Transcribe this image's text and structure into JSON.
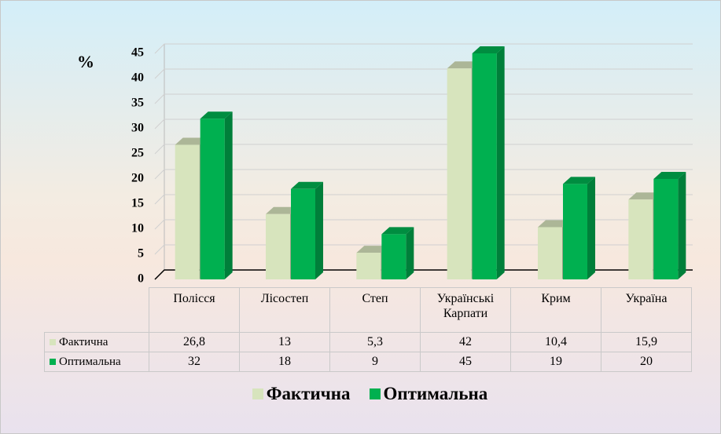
{
  "chart_data": {
    "type": "bar3d",
    "y_label": "%",
    "categories": [
      "Полісся",
      "Лісостеп",
      "Степ",
      "Українські Карпати",
      "Крим",
      "Україна"
    ],
    "series": [
      {
        "name": "Фактична",
        "color": "#d7e4bd",
        "values": [
          26.8,
          13,
          5.3,
          42,
          10.4,
          15.9
        ],
        "value_labels": [
          "26,8",
          "13",
          "5,3",
          "42",
          "10,4",
          "15,9"
        ]
      },
      {
        "name": "Оптимальна",
        "color": "#00b050",
        "values": [
          32,
          18,
          9,
          45,
          19,
          20
        ]
      }
    ],
    "ylim": [
      0,
      45
    ],
    "yticks": [
      0,
      5,
      10,
      15,
      20,
      25,
      30,
      35,
      40,
      45
    ],
    "grid": true
  }
}
